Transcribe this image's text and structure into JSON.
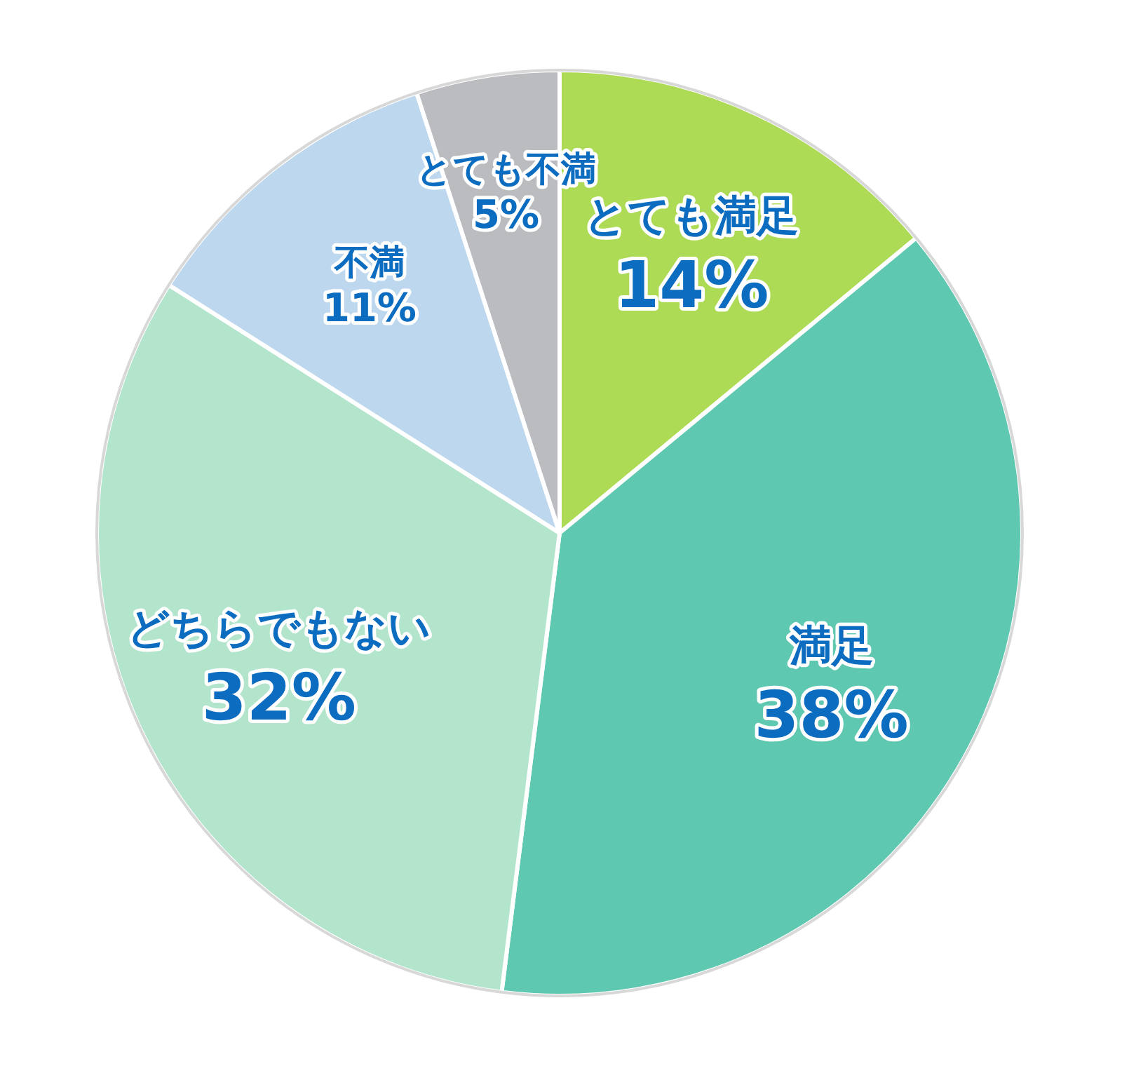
{
  "chart_data": {
    "type": "pie",
    "categories": [
      "とても満足",
      "満足",
      "どちらでもない",
      "不満",
      "とても不満"
    ],
    "values": [
      14,
      38,
      32,
      11,
      5
    ],
    "value_labels": [
      "14%",
      "38%",
      "32%",
      "11%",
      "5%"
    ],
    "colors": [
      "#addb55",
      "#5ec8b0",
      "#b2e5cc",
      "#bdd7ee",
      "#bbbcc0"
    ]
  }
}
